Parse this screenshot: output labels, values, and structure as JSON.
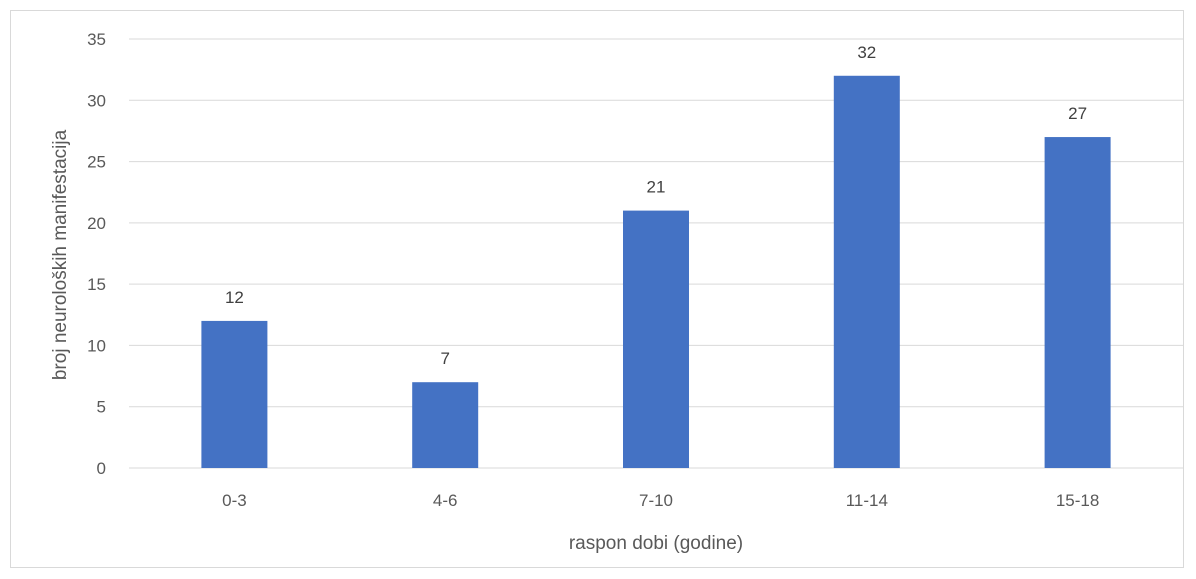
{
  "chart_data": {
    "type": "bar",
    "categories": [
      "0-3",
      "4-6",
      "7-10",
      "11-14",
      "15-18"
    ],
    "values": [
      12,
      7,
      21,
      32,
      27
    ],
    "data_labels": [
      "12",
      "7",
      "21",
      "32",
      "27"
    ],
    "title": "",
    "xlabel": "raspon dobi (godine)",
    "ylabel": "broj neuroloških manifestacija",
    "ylim": [
      0,
      35
    ],
    "yticks": [
      0,
      5,
      10,
      15,
      20,
      25,
      30,
      35
    ],
    "ytick_labels": [
      "0",
      "5",
      "10",
      "15",
      "20",
      "25",
      "30",
      "35"
    ],
    "grid": true,
    "legend": "none",
    "colors": {
      "bar": "#4472c4",
      "grid": "#d9d9d9",
      "text": "#595959"
    }
  }
}
